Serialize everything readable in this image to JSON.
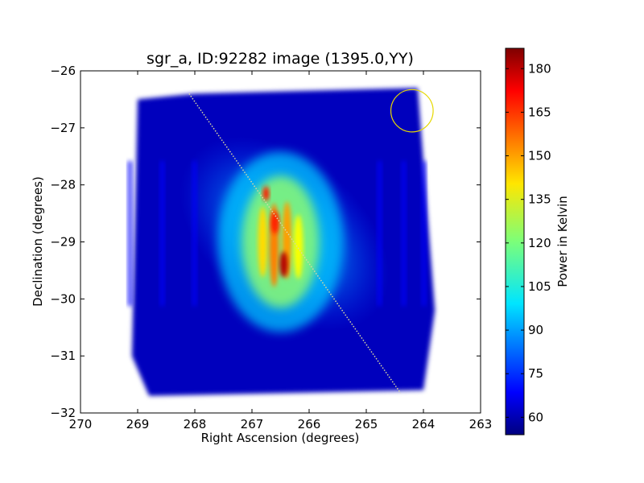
{
  "chart_data": {
    "type": "heatmap",
    "title": "sgr_a, ID:92282 image (1395.0,YY)",
    "xlabel": "Right Ascension (degrees)",
    "ylabel": "Declination (degrees)",
    "xlim": [
      270,
      263
    ],
    "ylim": [
      -32,
      -26
    ],
    "x_ticks": [
      "270",
      "269",
      "268",
      "267",
      "266",
      "265",
      "264",
      "263"
    ],
    "y_ticks": [
      "−26",
      "−27",
      "−28",
      "−29",
      "−30",
      "−31",
      "−32"
    ],
    "colorbar": {
      "label": "Power in Kelvin",
      "range": [
        54,
        187
      ],
      "ticks": [
        "60",
        "75",
        "90",
        "105",
        "120",
        "135",
        "150",
        "165",
        "180"
      ],
      "colormap": "jet"
    },
    "map_footprint_corners_deg": [
      [
        269.0,
        -26.5
      ],
      [
        268.0,
        -26.4
      ],
      [
        264.1,
        -26.3
      ],
      [
        263.8,
        -30.2
      ],
      [
        264.0,
        -31.6
      ],
      [
        268.8,
        -31.7
      ],
      [
        269.1,
        -31.0
      ]
    ],
    "peak_emission": {
      "ra": 266.5,
      "dec": -29.0,
      "value_K": 180
    },
    "background_value_K": 62,
    "overlays": {
      "line": {
        "color": "#d9d9a0",
        "from": [
          268.1,
          -26.4
        ],
        "to": [
          264.4,
          -31.65
        ]
      },
      "circle": {
        "color": "#e6d800",
        "center": [
          264.2,
          -26.7
        ],
        "radius_deg": 0.37
      }
    }
  }
}
